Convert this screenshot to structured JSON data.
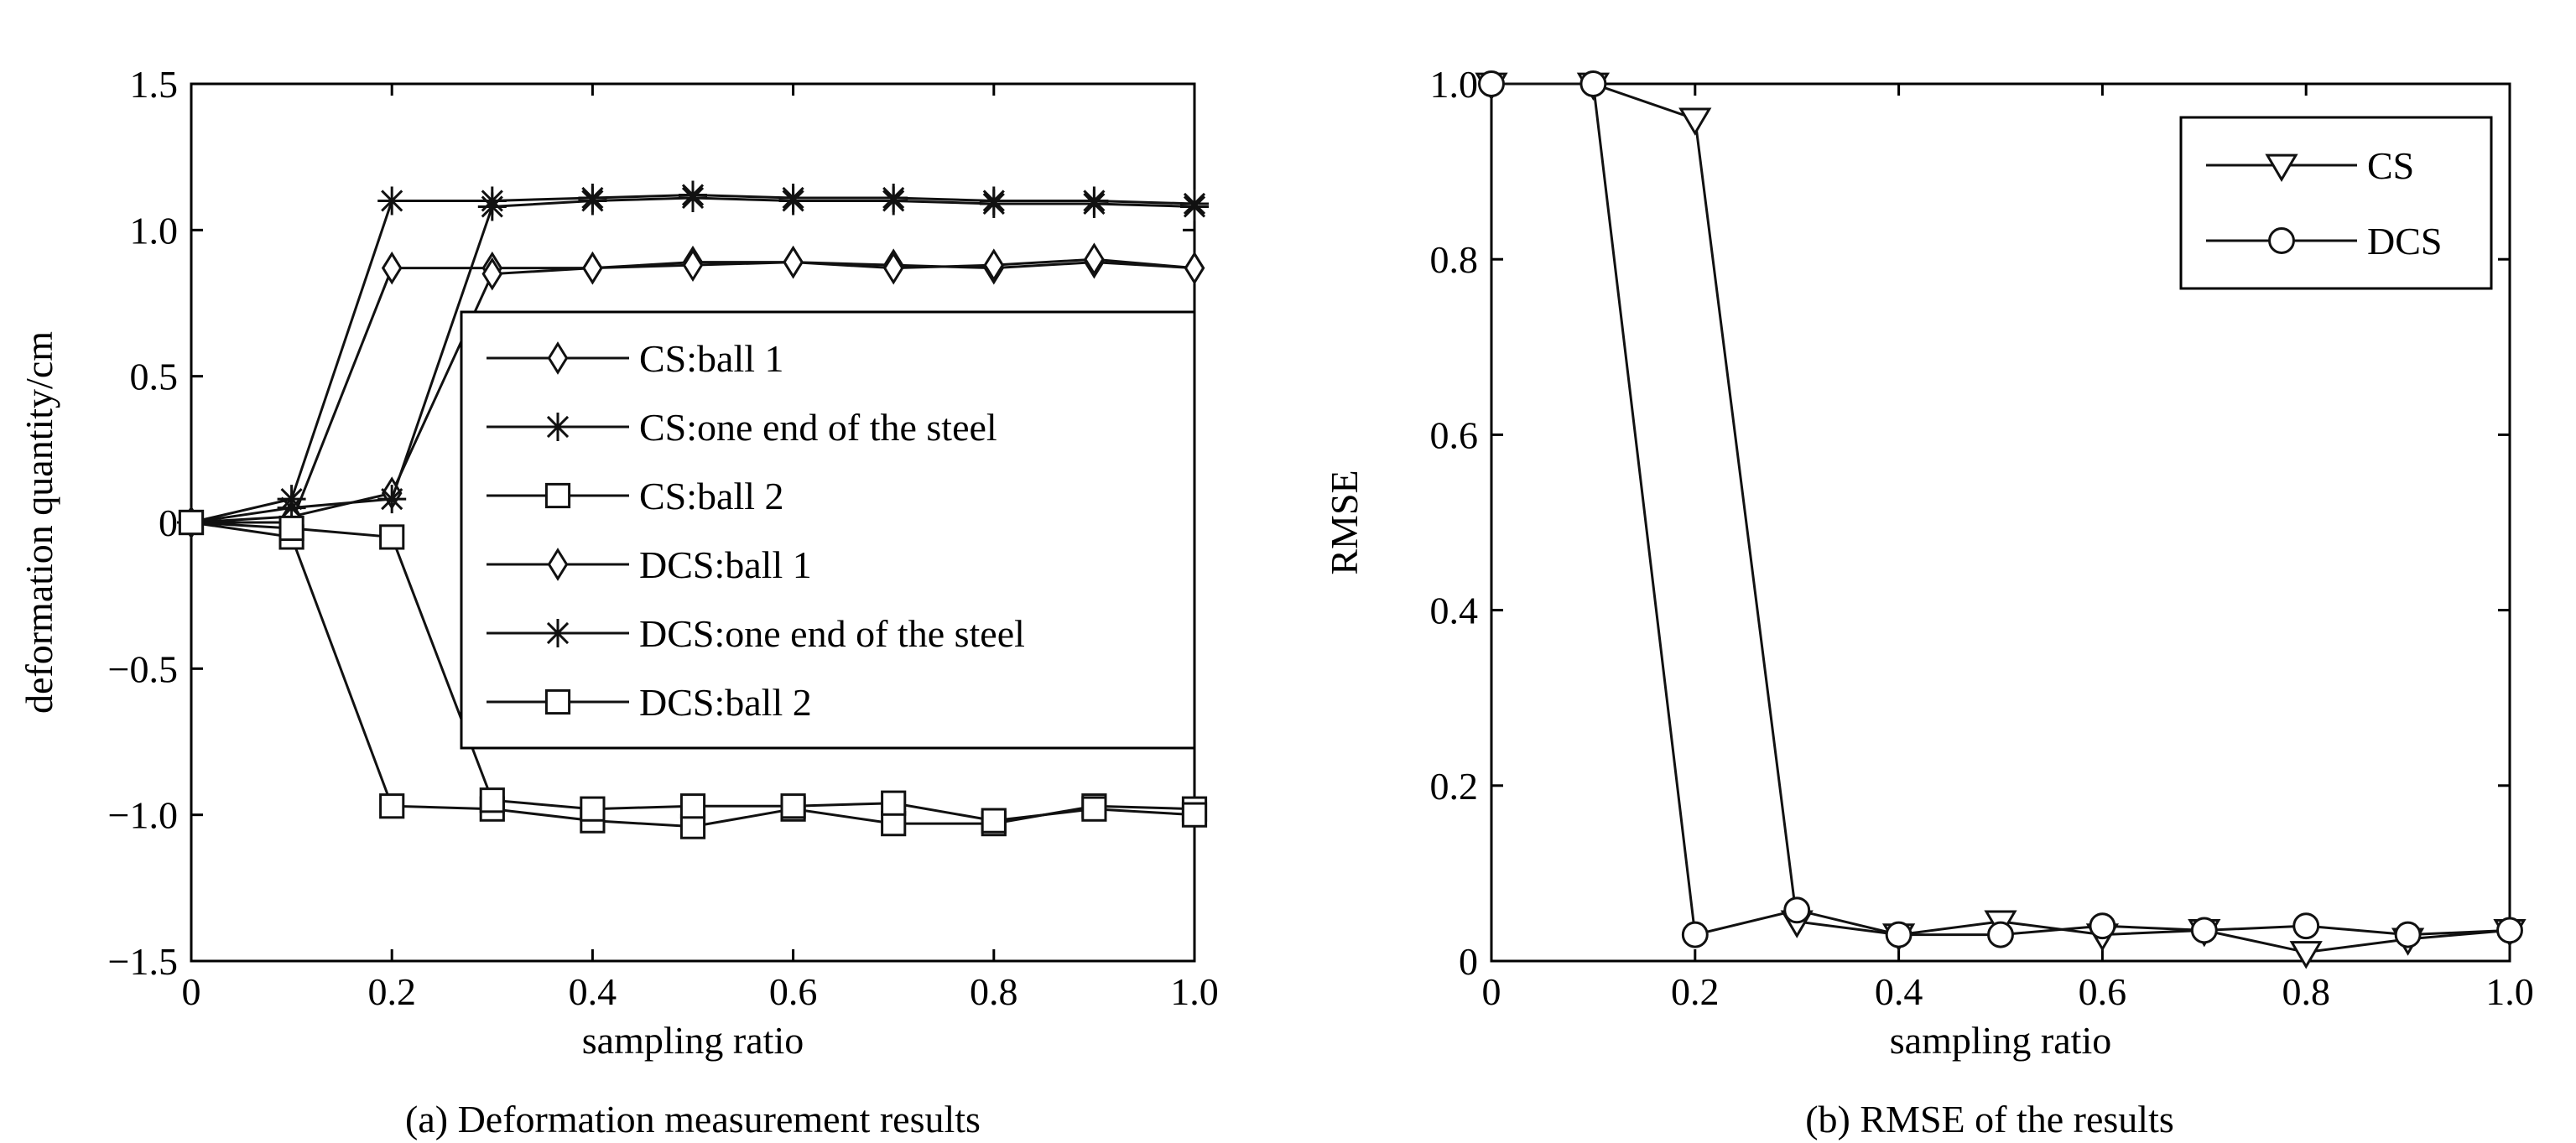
{
  "chart_data": [
    {
      "type": "line",
      "caption": "(a) Deformation measurement results",
      "xlabel": "sampling ratio",
      "ylabel": "deformation quantity/cm",
      "xlim": [
        0,
        1.0
      ],
      "ylim": [
        -1.5,
        1.5
      ],
      "x_ticks": [
        "0",
        "0.2",
        "0.4",
        "0.6",
        "0.8",
        "1.0"
      ],
      "y_ticks": [
        "−1.5",
        "−1.0",
        "−0.5",
        "0",
        "0.5",
        "1.0",
        "1.5"
      ],
      "x": [
        0,
        0.1,
        0.2,
        0.3,
        0.4,
        0.5,
        0.6,
        0.7,
        0.8,
        0.9,
        1.0
      ],
      "legend_position": "right-center",
      "series": [
        {
          "name": "CS:ball 1",
          "marker": "diamond",
          "values": [
            0,
            0.0,
            0.87,
            0.87,
            0.87,
            0.89,
            0.89,
            0.88,
            0.87,
            0.89,
            0.87
          ]
        },
        {
          "name": "CS:one end of the steel",
          "marker": "star",
          "values": [
            0,
            0.08,
            1.1,
            1.1,
            1.11,
            1.12,
            1.11,
            1.11,
            1.1,
            1.1,
            1.09
          ]
        },
        {
          "name": "CS:ball 2",
          "marker": "square",
          "values": [
            0,
            -0.05,
            -0.97,
            -0.98,
            -1.02,
            -1.04,
            -0.98,
            -1.03,
            -1.03,
            -0.97,
            -0.98
          ]
        },
        {
          "name": "DCS:ball 1",
          "marker": "diamond",
          "values": [
            0,
            0.02,
            0.1,
            0.85,
            0.87,
            0.88,
            0.89,
            0.87,
            0.88,
            0.9,
            0.87
          ]
        },
        {
          "name": "DCS:one end of the steel",
          "marker": "star",
          "values": [
            0,
            0.05,
            0.08,
            1.08,
            1.1,
            1.11,
            1.1,
            1.1,
            1.09,
            1.09,
            1.08
          ]
        },
        {
          "name": "DCS:ball 2",
          "marker": "square",
          "values": [
            0,
            -0.02,
            -0.05,
            -0.95,
            -0.98,
            -0.97,
            -0.97,
            -0.96,
            -1.02,
            -0.98,
            -1.0
          ]
        }
      ]
    },
    {
      "type": "line",
      "caption": "(b) RMSE of the results",
      "xlabel": "sampling ratio",
      "ylabel": "RMSE",
      "xlim": [
        0,
        1.0
      ],
      "ylim": [
        0,
        1.0
      ],
      "x_ticks": [
        "0",
        "0.2",
        "0.4",
        "0.6",
        "0.8",
        "1.0"
      ],
      "y_ticks": [
        "0",
        "0.2",
        "0.4",
        "0.6",
        "0.8",
        "1.0"
      ],
      "x": [
        0,
        0.1,
        0.2,
        0.3,
        0.4,
        0.5,
        0.6,
        0.7,
        0.8,
        0.9,
        1.0
      ],
      "legend_position": "top-right",
      "series": [
        {
          "name": "CS",
          "marker": "triangle-down",
          "values": [
            1.0,
            1.0,
            0.96,
            0.045,
            0.03,
            0.045,
            0.03,
            0.035,
            0.01,
            0.025,
            0.035
          ]
        },
        {
          "name": "DCS",
          "marker": "circle",
          "values": [
            1.0,
            1.0,
            0.03,
            0.058,
            0.03,
            0.03,
            0.04,
            0.035,
            0.04,
            0.03,
            0.035
          ]
        }
      ]
    }
  ]
}
